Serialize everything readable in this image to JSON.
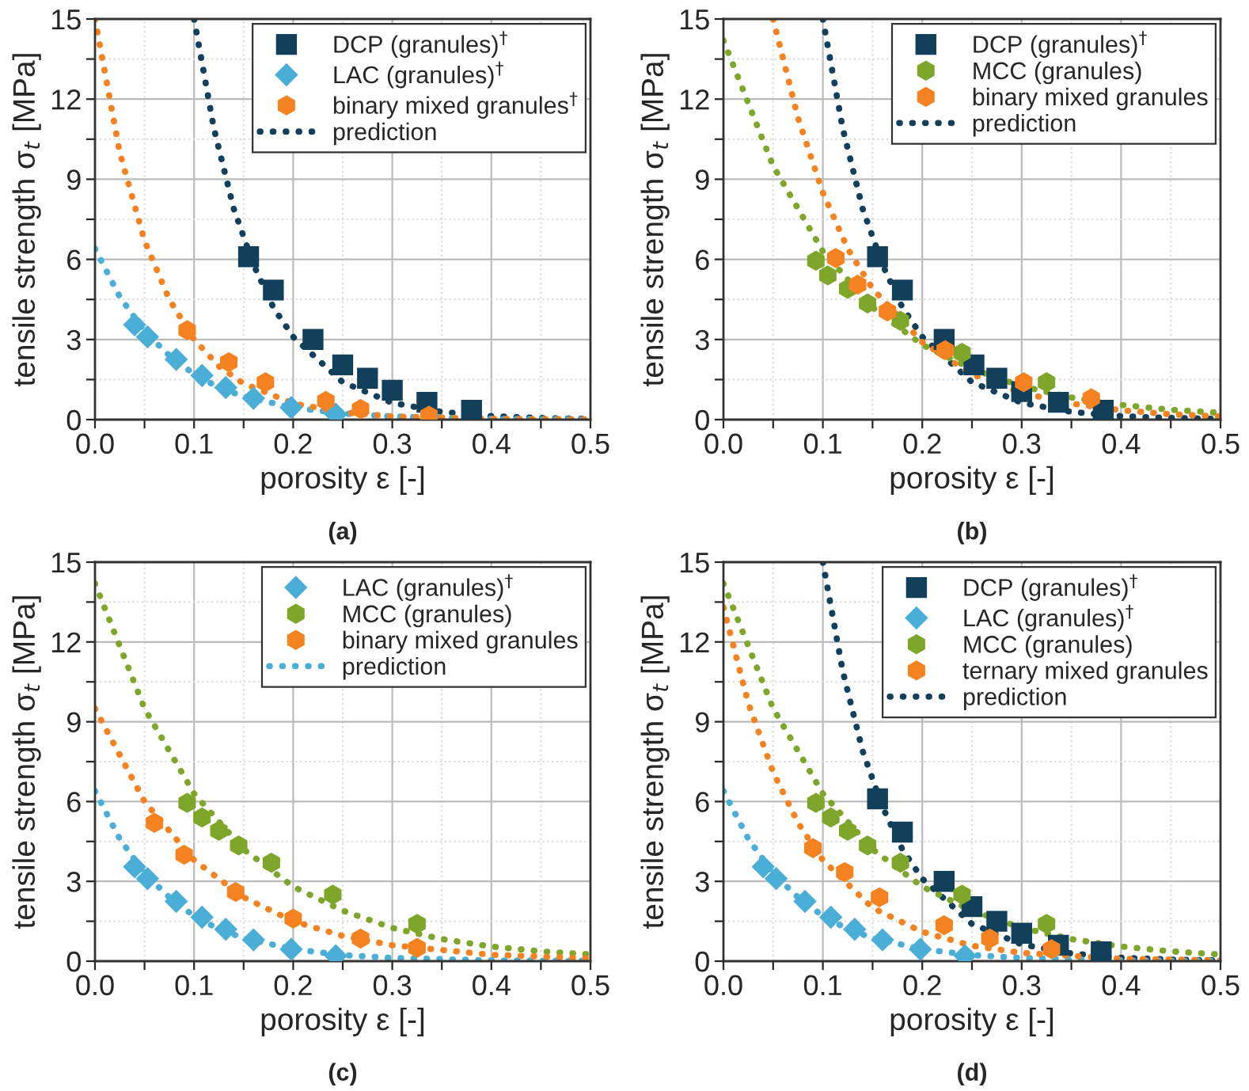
{
  "chart_data": [
    {
      "type": "scatter",
      "xlabel": "porosity ε [-]",
      "ylabel": "tensile strength σ$_{t}$ [MPa]",
      "annotations": [
        "(a)"
      ],
      "xlim": [
        0,
        0.5
      ],
      "ylim": [
        0,
        15
      ],
      "xticks": [
        {
          "value": 0,
          "label": "0.0"
        },
        {
          "value": 0.05,
          "label": null
        },
        {
          "value": 0.1,
          "label": "0.1"
        },
        {
          "value": 0.15,
          "label": null
        },
        {
          "value": 0.2,
          "label": "0.2"
        },
        {
          "value": 0.25,
          "label": null
        },
        {
          "value": 0.3,
          "label": "0.3"
        },
        {
          "value": 0.35,
          "label": null
        },
        {
          "value": 0.4,
          "label": "0.4"
        },
        {
          "value": 0.45,
          "label": null
        },
        {
          "value": 0.5,
          "label": "0.5"
        }
      ],
      "yticks": [
        0,
        {
          "value": 1.5,
          "label": null
        },
        3,
        {
          "value": 4.5,
          "label": null
        },
        6,
        {
          "value": 7.5,
          "label": null
        },
        9,
        {
          "value": 10.5,
          "label": null
        },
        12,
        {
          "value": 13.5,
          "label": null
        },
        15
      ],
      "grid": true,
      "legend": "top right",
      "series": [
        {
          "name": "DCP (granules)$^{†}$",
          "color": "#123f5a",
          "marker": "square",
          "x": [
            0.155,
            0.18,
            0.22,
            0.25,
            0.275,
            0.3,
            0.335,
            0.38
          ],
          "values": [
            6.1,
            4.85,
            3.0,
            2.05,
            1.55,
            1.1,
            0.65,
            0.35
          ]
        },
        {
          "name": "LAC (granules)$^{†}$",
          "color": "#4aaed6",
          "marker": "diamond",
          "x": [
            0.04,
            0.053,
            0.082,
            0.108,
            0.132,
            0.16,
            0.198,
            0.243
          ],
          "values": [
            3.55,
            3.1,
            2.25,
            1.65,
            1.2,
            0.8,
            0.45,
            0.2
          ]
        },
        {
          "name": "binary mixed granules$^{†}$",
          "color": "#f58220",
          "x": [
            0.093,
            0.135,
            0.172,
            0.233,
            0.268,
            0.337
          ],
          "values": [
            3.35,
            2.15,
            1.4,
            0.7,
            0.4,
            0.15
          ]
        },
        {
          "type": "line",
          "name": "prediction",
          "color": "#123f5a",
          "line_style": "dotted",
          "x": [
            0.1,
            0.12,
            0.14,
            0.16,
            0.18,
            0.2,
            0.25,
            0.3,
            0.35,
            0.4,
            0.45,
            0.5
          ],
          "values": [
            15,
            10.9,
            7.9,
            5.8,
            4.2,
            3.1,
            1.4,
            0.63,
            0.29,
            0.13,
            0.06,
            0.03
          ]
        },
        {
          "type": "line",
          "color": "#4aaed6",
          "line_style": "dotted",
          "x": [
            0,
            0.025,
            0.05,
            0.075,
            0.1,
            0.125,
            0.15,
            0.2,
            0.25,
            0.3,
            0.4,
            0.5
          ],
          "values": [
            6.4,
            4.6,
            3.3,
            2.4,
            1.7,
            1.2,
            0.87,
            0.45,
            0.23,
            0.12,
            0.03,
            0.01
          ]
        },
        {
          "type": "line",
          "color": "#f58220",
          "line_style": "dotted",
          "x": [
            0,
            0.025,
            0.05,
            0.075,
            0.1,
            0.125,
            0.15,
            0.2,
            0.25,
            0.3,
            0.4,
            0.5
          ],
          "values": [
            15,
            10,
            6.7,
            4.5,
            3.0,
            2.0,
            1.35,
            0.61,
            0.27,
            0.12,
            0.03,
            0.01
          ]
        }
      ]
    },
    {
      "type": "scatter",
      "xlabel": "porosity ε [-]",
      "ylabel": "tensile strength σ$_{t}$ [MPa]",
      "annotations": [
        "(b)"
      ],
      "xlim": [
        0,
        0.5
      ],
      "ylim": [
        0,
        15
      ],
      "xticks": [
        {
          "value": 0,
          "label": "0.0"
        },
        {
          "value": 0.05,
          "label": null
        },
        {
          "value": 0.1,
          "label": "0.1"
        },
        {
          "value": 0.15,
          "label": null
        },
        {
          "value": 0.2,
          "label": "0.2"
        },
        {
          "value": 0.25,
          "label": null
        },
        {
          "value": 0.3,
          "label": "0.3"
        },
        {
          "value": 0.35,
          "label": null
        },
        {
          "value": 0.4,
          "label": "0.4"
        },
        {
          "value": 0.45,
          "label": null
        },
        {
          "value": 0.5,
          "label": "0.5"
        }
      ],
      "yticks": [
        0,
        {
          "value": 1.5,
          "label": null
        },
        3,
        {
          "value": 4.5,
          "label": null
        },
        6,
        {
          "value": 7.5,
          "label": null
        },
        9,
        {
          "value": 10.5,
          "label": null
        },
        12,
        {
          "value": 13.5,
          "label": null
        },
        15
      ],
      "grid": true,
      "legend": "top right",
      "series": [
        {
          "name": "DCP (granules)$^{†}$",
          "color": "#123f5a",
          "marker": "square",
          "x": [
            0.155,
            0.18,
            0.222,
            0.252,
            0.275,
            0.3,
            0.337,
            0.382
          ],
          "values": [
            6.1,
            4.85,
            3.0,
            2.05,
            1.55,
            1.05,
            0.65,
            0.35
          ]
        },
        {
          "name": "MCC (granules)",
          "color": "#7ea62a",
          "x": [
            0.093,
            0.105,
            0.125,
            0.145,
            0.178,
            0.24,
            0.325
          ],
          "values": [
            5.95,
            5.4,
            4.9,
            4.35,
            3.7,
            2.5,
            1.4
          ]
        },
        {
          "name": "binary mixed granules",
          "color": "#f58220",
          "x": [
            0.113,
            0.135,
            0.165,
            0.223,
            0.302,
            0.37
          ],
          "values": [
            6.05,
            5.05,
            4.05,
            2.6,
            1.4,
            0.8
          ]
        },
        {
          "type": "line",
          "name": "prediction",
          "color": "#123f5a",
          "line_style": "dotted",
          "x": [
            0.1,
            0.12,
            0.14,
            0.16,
            0.18,
            0.2,
            0.25,
            0.3,
            0.35,
            0.4,
            0.45,
            0.5
          ],
          "values": [
            15,
            10.9,
            7.9,
            5.8,
            4.2,
            3.1,
            1.4,
            0.63,
            0.29,
            0.13,
            0.06,
            0.03
          ]
        },
        {
          "type": "line",
          "color": "#7ea62a",
          "line_style": "dotted",
          "x": [
            0,
            0.05,
            0.1,
            0.15,
            0.2,
            0.25,
            0.3,
            0.35,
            0.4,
            0.45,
            0.5
          ],
          "values": [
            14.2,
            9.5,
            6.3,
            4.2,
            2.8,
            1.9,
            1.25,
            0.83,
            0.55,
            0.37,
            0.25
          ]
        },
        {
          "type": "line",
          "color": "#f58220",
          "line_style": "dotted",
          "x": [
            0.05,
            0.075,
            0.1,
            0.125,
            0.15,
            0.2,
            0.25,
            0.3,
            0.35,
            0.4,
            0.45,
            0.5
          ],
          "values": [
            15,
            11.3,
            8.5,
            6.4,
            4.9,
            2.9,
            1.7,
            1.0,
            0.6,
            0.35,
            0.2,
            0.12
          ]
        }
      ]
    },
    {
      "type": "scatter",
      "xlabel": "porosity ε [-]",
      "ylabel": "tensile strength σ$_{t}$ [MPa]",
      "annotations": [
        "(c)"
      ],
      "xlim": [
        0,
        0.5
      ],
      "ylim": [
        0,
        15
      ],
      "xticks": [
        {
          "value": 0,
          "label": "0.0"
        },
        {
          "value": 0.05,
          "label": null
        },
        {
          "value": 0.1,
          "label": "0.1"
        },
        {
          "value": 0.15,
          "label": null
        },
        {
          "value": 0.2,
          "label": "0.2"
        },
        {
          "value": 0.25,
          "label": null
        },
        {
          "value": 0.3,
          "label": "0.3"
        },
        {
          "value": 0.35,
          "label": null
        },
        {
          "value": 0.4,
          "label": "0.4"
        },
        {
          "value": 0.45,
          "label": null
        },
        {
          "value": 0.5,
          "label": "0.5"
        }
      ],
      "yticks": [
        0,
        {
          "value": 1.5,
          "label": null
        },
        3,
        {
          "value": 4.5,
          "label": null
        },
        6,
        {
          "value": 7.5,
          "label": null
        },
        9,
        {
          "value": 10.5,
          "label": null
        },
        12,
        {
          "value": 13.5,
          "label": null
        },
        15
      ],
      "grid": true,
      "legend": "top right",
      "series": [
        {
          "name": "LAC (granules)$^{†}$",
          "color": "#4aaed6",
          "marker": "diamond",
          "x": [
            0.04,
            0.053,
            0.082,
            0.108,
            0.132,
            0.16,
            0.198,
            0.243
          ],
          "values": [
            3.55,
            3.1,
            2.25,
            1.65,
            1.2,
            0.8,
            0.45,
            0.2
          ]
        },
        {
          "name": "MCC (granules)",
          "color": "#7ea62a",
          "x": [
            0.093,
            0.108,
            0.125,
            0.145,
            0.178,
            0.24,
            0.325
          ],
          "values": [
            5.95,
            5.4,
            4.9,
            4.35,
            3.7,
            2.5,
            1.4
          ]
        },
        {
          "name": "binary mixed granules",
          "color": "#f58220",
          "x": [
            0.06,
            0.09,
            0.142,
            0.2,
            0.268,
            0.325
          ],
          "values": [
            5.2,
            4.0,
            2.6,
            1.6,
            0.85,
            0.5
          ]
        },
        {
          "type": "line",
          "name": "prediction",
          "color": "#4aaed6",
          "line_style": "dotted",
          "x": [
            0,
            0.025,
            0.05,
            0.075,
            0.1,
            0.125,
            0.15,
            0.2,
            0.25,
            0.3,
            0.4,
            0.5
          ],
          "values": [
            6.4,
            4.6,
            3.3,
            2.4,
            1.7,
            1.2,
            0.87,
            0.45,
            0.23,
            0.12,
            0.03,
            0.01
          ]
        },
        {
          "type": "line",
          "color": "#7ea62a",
          "line_style": "dotted",
          "x": [
            0,
            0.05,
            0.1,
            0.15,
            0.2,
            0.25,
            0.3,
            0.35,
            0.4,
            0.45,
            0.5
          ],
          "values": [
            14.2,
            9.5,
            6.3,
            4.2,
            2.8,
            1.9,
            1.25,
            0.83,
            0.55,
            0.37,
            0.25
          ]
        },
        {
          "type": "line",
          "color": "#f58220",
          "line_style": "dotted",
          "x": [
            0,
            0.05,
            0.1,
            0.15,
            0.2,
            0.25,
            0.3,
            0.4,
            0.5
          ],
          "values": [
            9.5,
            6.0,
            3.8,
            2.4,
            1.5,
            0.95,
            0.6,
            0.24,
            0.1
          ]
        }
      ]
    },
    {
      "type": "scatter",
      "xlabel": "porosity ε [-]",
      "ylabel": "tensile strength σ$_{t}$ [MPa]",
      "annotations": [
        "(d)"
      ],
      "xlim": [
        0,
        0.5
      ],
      "ylim": [
        0,
        15
      ],
      "xticks": [
        {
          "value": 0,
          "label": "0.0"
        },
        {
          "value": 0.05,
          "label": null
        },
        {
          "value": 0.1,
          "label": "0.1"
        },
        {
          "value": 0.15,
          "label": null
        },
        {
          "value": 0.2,
          "label": "0.2"
        },
        {
          "value": 0.25,
          "label": null
        },
        {
          "value": 0.3,
          "label": "0.3"
        },
        {
          "value": 0.35,
          "label": null
        },
        {
          "value": 0.4,
          "label": "0.4"
        },
        {
          "value": 0.45,
          "label": null
        },
        {
          "value": 0.5,
          "label": "0.5"
        }
      ],
      "yticks": [
        0,
        {
          "value": 1.5,
          "label": null
        },
        3,
        {
          "value": 4.5,
          "label": null
        },
        6,
        {
          "value": 7.5,
          "label": null
        },
        9,
        {
          "value": 10.5,
          "label": null
        },
        12,
        {
          "value": 13.5,
          "label": null
        },
        15
      ],
      "grid": true,
      "legend": "top right",
      "series": [
        {
          "name": "DCP (granules)$^{†}$",
          "color": "#123f5a",
          "marker": "square",
          "x": [
            0.155,
            0.18,
            0.222,
            0.25,
            0.275,
            0.3,
            0.337,
            0.38
          ],
          "values": [
            6.1,
            4.85,
            3.0,
            2.05,
            1.5,
            1.05,
            0.6,
            0.35
          ]
        },
        {
          "name": "LAC (granules)$^{†}$",
          "color": "#4aaed6",
          "marker": "diamond",
          "x": [
            0.04,
            0.053,
            0.082,
            0.108,
            0.132,
            0.16,
            0.198,
            0.243
          ],
          "values": [
            3.55,
            3.1,
            2.25,
            1.65,
            1.2,
            0.8,
            0.45,
            0.2
          ]
        },
        {
          "name": "MCC (granules)",
          "color": "#7ea62a",
          "x": [
            0.093,
            0.108,
            0.125,
            0.145,
            0.178,
            0.24,
            0.325
          ],
          "values": [
            5.95,
            5.4,
            4.9,
            4.35,
            3.7,
            2.5,
            1.4
          ]
        },
        {
          "name": "ternary mixed granules",
          "color": "#f58220",
          "x": [
            0.09,
            0.122,
            0.157,
            0.222,
            0.268,
            0.33
          ],
          "values": [
            4.25,
            3.35,
            2.4,
            1.35,
            0.85,
            0.45
          ]
        },
        {
          "type": "line",
          "name": "prediction",
          "color": "#123f5a",
          "line_style": "dotted",
          "x": [
            0.1,
            0.12,
            0.14,
            0.16,
            0.18,
            0.2,
            0.25,
            0.3,
            0.35,
            0.4,
            0.45,
            0.5
          ],
          "values": [
            15,
            10.9,
            7.9,
            5.8,
            4.2,
            3.1,
            1.4,
            0.63,
            0.29,
            0.13,
            0.06,
            0.03
          ]
        },
        {
          "type": "line",
          "color": "#4aaed6",
          "line_style": "dotted",
          "x": [
            0,
            0.025,
            0.05,
            0.075,
            0.1,
            0.125,
            0.15,
            0.2,
            0.25,
            0.3,
            0.4,
            0.5
          ],
          "values": [
            6.4,
            4.6,
            3.3,
            2.4,
            1.7,
            1.2,
            0.87,
            0.45,
            0.23,
            0.12,
            0.03,
            0.01
          ]
        },
        {
          "type": "line",
          "color": "#7ea62a",
          "line_style": "dotted",
          "x": [
            0,
            0.05,
            0.1,
            0.15,
            0.2,
            0.25,
            0.3,
            0.35,
            0.4,
            0.45,
            0.5
          ],
          "values": [
            14.2,
            9.5,
            6.3,
            4.2,
            2.8,
            1.9,
            1.25,
            0.83,
            0.55,
            0.37,
            0.25
          ]
        },
        {
          "type": "line",
          "color": "#f58220",
          "line_style": "dotted",
          "x": [
            0,
            0.025,
            0.05,
            0.075,
            0.1,
            0.15,
            0.2,
            0.25,
            0.3,
            0.4,
            0.5
          ],
          "values": [
            13.3,
            9.7,
            7.1,
            5.2,
            3.8,
            2.0,
            1.1,
            0.58,
            0.31,
            0.09,
            0.03
          ]
        }
      ]
    }
  ]
}
